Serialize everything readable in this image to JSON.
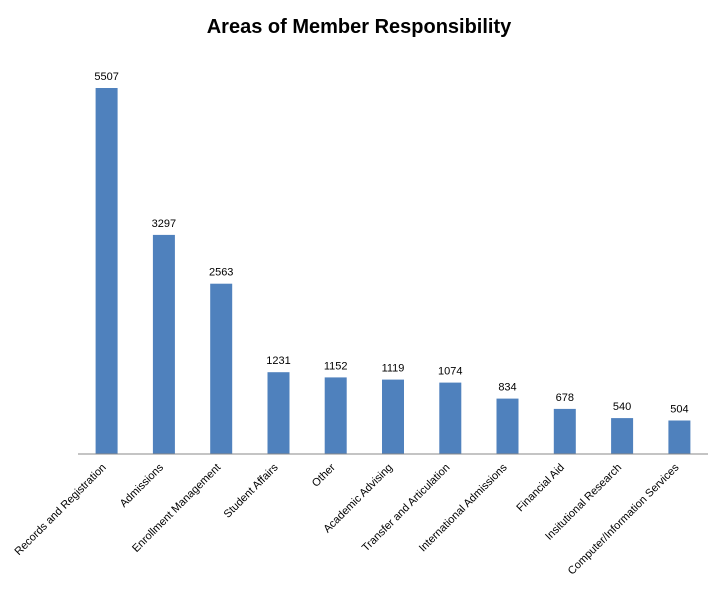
{
  "chart_data": {
    "type": "bar",
    "title": "Areas of Member Responsibility",
    "xlabel": "",
    "ylabel": "",
    "categories": [
      "Records and Registration",
      "Admissions",
      "Enrollment Management",
      "Student Affairs",
      "Other",
      "Academic Advising",
      "Transfer and Articulation",
      "International Admissions",
      "Financial Aid",
      "Insitutional Research",
      "Computer/Information Services"
    ],
    "values": [
      5507,
      3297,
      2563,
      1231,
      1152,
      1119,
      1074,
      834,
      678,
      540,
      504
    ],
    "ylim": [
      0,
      5507
    ],
    "grid": false,
    "legend": "none",
    "colors": {
      "bar": "#4f81bd",
      "axis": "#888888"
    }
  }
}
